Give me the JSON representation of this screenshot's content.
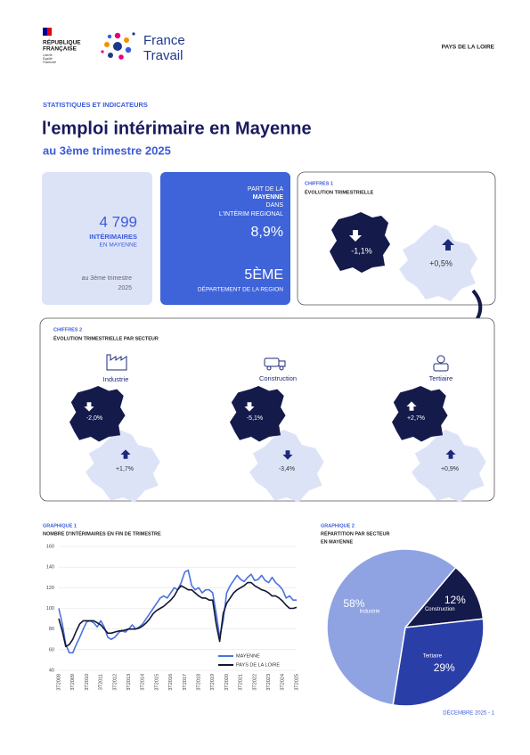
{
  "header": {
    "republique": "RÉPUBLIQUE",
    "francaise": "FRANÇAISE",
    "devise": [
      "Liberté",
      "Égalité",
      "Fraternité"
    ],
    "brand": [
      "France",
      "Travail"
    ],
    "region": "PAYS DE LA LOIRE"
  },
  "intro": {
    "kicker": "STATISTIQUES ET INDICATEURS",
    "title": "l'emploi intérimaire en Mayenne",
    "subtitle": "au 3ème trimestre 2025"
  },
  "kpi1": {
    "value": "4 799",
    "label": "INTÉRIMAIRES",
    "sub": "EN MAYENNE",
    "period": [
      "au 3ème trimestre",
      "2025"
    ]
  },
  "kpi2": {
    "lines": [
      "PART DE LA",
      "MAYENNE",
      "DANS",
      "L'INTÉRIM REGIONAL"
    ],
    "value": "8,9%",
    "rank": "5ÈME",
    "rank_label": "DÉPARTEMENT DE LA REGION"
  },
  "chiffres1": {
    "kicker": "CHIFFRES 1",
    "title": "ÉVOLUTION TRIMESTRIELLE",
    "dept": "-1,1%",
    "region": "+0,5%"
  },
  "chiffres2": {
    "kicker": "CHIFFRES 2",
    "title": "ÉVOLUTION TRIMESTRIELLE PAR SECTEUR",
    "sectors": [
      {
        "name": "Industrie",
        "dept": "-2,0%",
        "region": "+1,7%"
      },
      {
        "name": "Construction",
        "dept": "-5,1%",
        "region": "-3,4%"
      },
      {
        "name": "Tertiaire",
        "dept": "+2,7%",
        "region": "+0,9%"
      }
    ]
  },
  "chart_data": [
    {
      "type": "line",
      "kicker": "GRAPHIQUE 1",
      "title": "NOMBRE D'INTÉRIMAIRES EN FIN DE TRIMESTRE",
      "categories": [
        "3T2008",
        null,
        null,
        null,
        "3T2009",
        null,
        null,
        null,
        "3T2010",
        null,
        null,
        null,
        "3T2011",
        null,
        null,
        null,
        "3T2012",
        null,
        null,
        null,
        "3T2013",
        null,
        null,
        null,
        "3T2014",
        null,
        null,
        null,
        "3T2015",
        null,
        null,
        null,
        "3T2016",
        null,
        null,
        null,
        "3T2017",
        null,
        null,
        null,
        "3T2018",
        null,
        null,
        null,
        "3T2019",
        null,
        null,
        null,
        "3T2020",
        null,
        null,
        null,
        "3T2021",
        null,
        null,
        null,
        "3T2022",
        null,
        null,
        null,
        "3T2023",
        null,
        null,
        null,
        "3T2024",
        null,
        null,
        null,
        "3T2025"
      ],
      "series": [
        {
          "name": "MAYENNE",
          "color": "#4a72e0",
          "values": [
            100,
            85,
            65,
            57,
            57,
            65,
            72,
            80,
            87,
            88,
            86,
            82,
            88,
            82,
            72,
            70,
            72,
            76,
            79,
            77,
            80,
            84,
            80,
            82,
            85,
            90,
            95,
            100,
            105,
            110,
            112,
            110,
            115,
            120,
            118,
            125,
            135,
            137,
            122,
            118,
            120,
            115,
            118,
            118,
            115,
            95,
            72,
            88,
            115,
            122,
            127,
            132,
            128,
            126,
            130,
            133,
            127,
            128,
            132,
            127,
            125,
            130,
            125,
            122,
            118,
            110,
            112,
            108,
            108
          ]
        },
        {
          "name": "PAYS DE LA LOIRE",
          "color": "#111633",
          "values": [
            90,
            78,
            63,
            65,
            70,
            78,
            85,
            88,
            88,
            88,
            88,
            86,
            84,
            80,
            76,
            76,
            77,
            78,
            78,
            79,
            80,
            80,
            80,
            81,
            83,
            86,
            90,
            95,
            98,
            100,
            102,
            105,
            108,
            112,
            118,
            122,
            120,
            118,
            118,
            115,
            112,
            110,
            110,
            108,
            108,
            85,
            68,
            95,
            105,
            110,
            115,
            118,
            120,
            122,
            125,
            125,
            122,
            120,
            118,
            117,
            115,
            112,
            112,
            110,
            107,
            103,
            100,
            100,
            101
          ]
        }
      ],
      "ylim": [
        40,
        160
      ],
      "yticks": [
        40,
        60,
        80,
        100,
        120,
        140,
        160
      ],
      "grid": true
    },
    {
      "type": "pie",
      "kicker": "GRAPHIQUE 2",
      "title": "RÉPARTITION PAR SECTEUR",
      "subtitle": "EN MAYENNE",
      "categories": [
        "Construction",
        "Tertiaire",
        "Industrie"
      ],
      "values": [
        12,
        29,
        58
      ],
      "value_labels": [
        "12%",
        "29%",
        "58%"
      ],
      "colors": [
        "#141a4a",
        "#2a3ea8",
        "#8fa3e3"
      ]
    }
  ],
  "footer": "DÉCEMBRE 2025 - 1"
}
